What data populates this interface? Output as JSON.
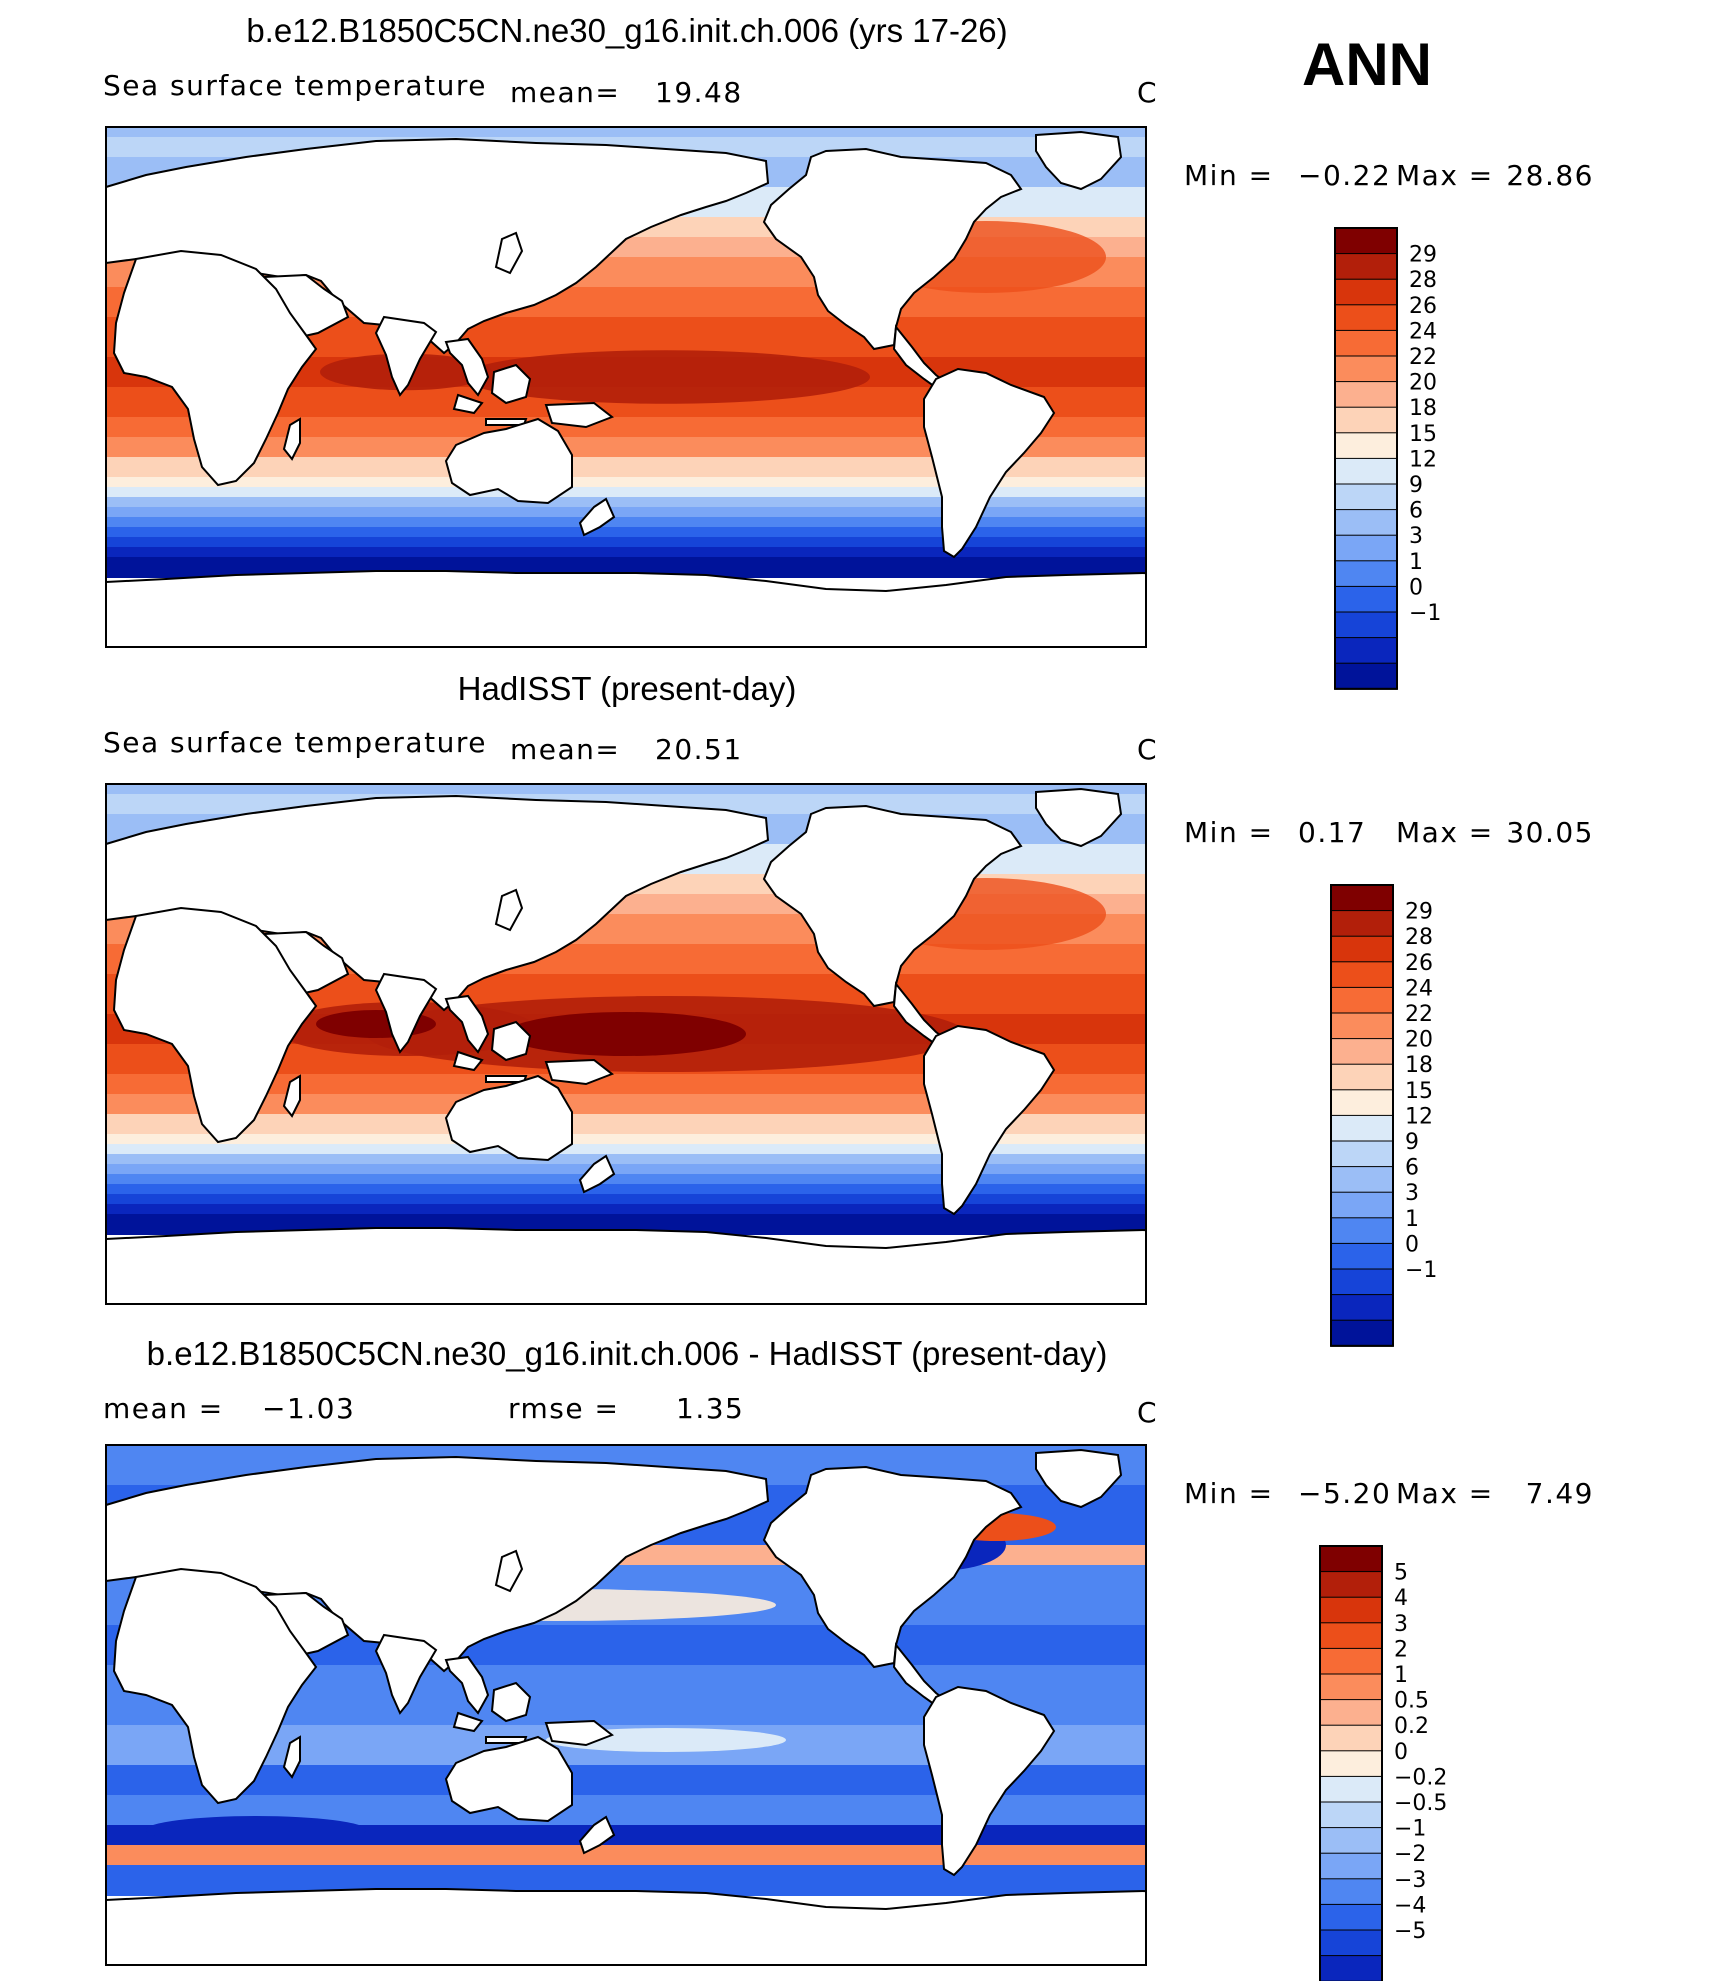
{
  "season": "ANN",
  "unit": "C",
  "panels": [
    {
      "title": "b.e12.B1850C5CN.ne30_g16.init.ch.006 (yrs 17-26)",
      "variable": "Sea surface temperature",
      "stat1_label": "mean=",
      "stat1_value": "19.48",
      "stat2_label": "",
      "stat2_value": "",
      "unit": "C",
      "min_label": "Min =",
      "min_value": "−0.22",
      "max_label": "Max =",
      "max_value": "28.86",
      "field_type": "abs",
      "warm_pool_strength": 0.6
    },
    {
      "title": "HadISST (present-day)",
      "variable": "Sea surface temperature",
      "stat1_label": "mean=",
      "stat1_value": "20.51",
      "stat2_label": "",
      "stat2_value": "",
      "unit": "C",
      "min_label": "Min =",
      "min_value": "0.17",
      "max_label": "Max =",
      "max_value": "30.05",
      "field_type": "abs",
      "warm_pool_strength": 1.0
    },
    {
      "title": "b.e12.B1850C5CN.ne30_g16.init.ch.006 - HadISST (present-day)",
      "variable": "",
      "stat1_label": "mean =",
      "stat1_value": "−1.03",
      "stat2_label": "rmse =",
      "stat2_value": "1.35",
      "unit": "C",
      "min_label": "Min =",
      "min_value": "−5.20",
      "max_label": "Max =",
      "max_value": "7.49",
      "field_type": "diff",
      "warm_pool_strength": 0
    }
  ],
  "colorbars": {
    "abs": {
      "labels": [
        "29",
        "28",
        "26",
        "24",
        "22",
        "20",
        "18",
        "15",
        "12",
        "9",
        "6",
        "3",
        "1",
        "0",
        "−1"
      ],
      "colors": [
        "#7f0000",
        "#b21f0a",
        "#d8350c",
        "#ec4f1a",
        "#f76b35",
        "#fb8c5c",
        "#fcb08f",
        "#fdd3b8",
        "#fdeedd",
        "#dbeaf8",
        "#bcd6f7",
        "#9bbef6",
        "#7aa6f6",
        "#4f86f2",
        "#2b63ea",
        "#1644d8",
        "#0a26bd",
        "#00139a"
      ]
    },
    "diff": {
      "labels": [
        "5",
        "4",
        "3",
        "2",
        "1",
        "0.5",
        "0.2",
        "0",
        "−0.2",
        "−0.5",
        "−1",
        "−2",
        "−3",
        "−4",
        "−5"
      ],
      "colors": [
        "#7f0000",
        "#b21f0a",
        "#d8350c",
        "#ec4f1a",
        "#f76b35",
        "#fb8c5c",
        "#fcb08f",
        "#fdd3b8",
        "#fdeedd",
        "#dbeaf8",
        "#bcd6f7",
        "#9bbef6",
        "#7aa6f6",
        "#4f86f2",
        "#2b63ea",
        "#1644d8",
        "#0a26bd",
        "#00139a"
      ]
    }
  }
}
